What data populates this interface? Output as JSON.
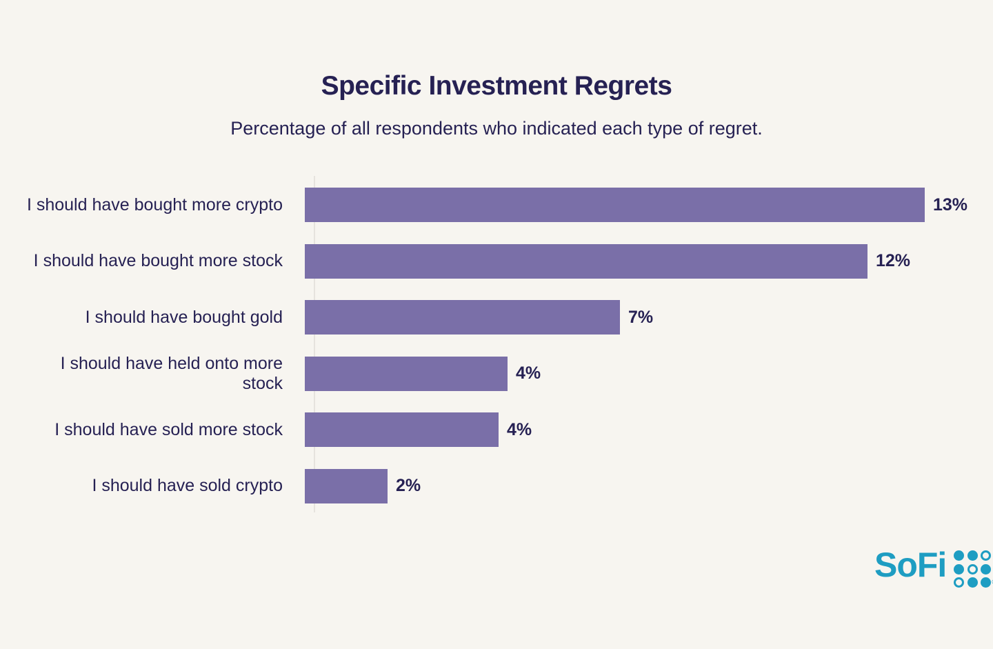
{
  "page": {
    "background_color": "#f7f5f0"
  },
  "chart_data": {
    "type": "bar",
    "orientation": "horizontal",
    "title": "Specific Investment Regrets",
    "subtitle": "Percentage of all respondents who indicated each type of regret.",
    "categories": [
      "I should have bought more crypto",
      "I should have bought more stock",
      "I should have bought gold",
      "I should have held onto more\nstock",
      "I should have sold more stock",
      "I should have sold crypto"
    ],
    "values": [
      13,
      12,
      7,
      4,
      4,
      2
    ],
    "value_labels": [
      "13%",
      "12%",
      "7%",
      "4%",
      "4%",
      "2%"
    ],
    "xlim": [
      0,
      13
    ],
    "grid": false,
    "legend": false,
    "value_labels_position": "end-of-bar",
    "bar_color": "#7a6fa8",
    "axis_line_color": "#e6e3de",
    "text_color": "#262153",
    "bar_length_fractions_of_max": [
      1.0,
      0.908,
      0.508,
      0.327,
      0.313,
      0.133
    ]
  },
  "logo": {
    "text": "SoFi",
    "registered_mark": "®",
    "color": "#1e9dc2",
    "dot_pattern": [
      [
        1,
        1,
        0
      ],
      [
        1,
        0,
        1
      ],
      [
        0,
        1,
        1
      ]
    ]
  }
}
